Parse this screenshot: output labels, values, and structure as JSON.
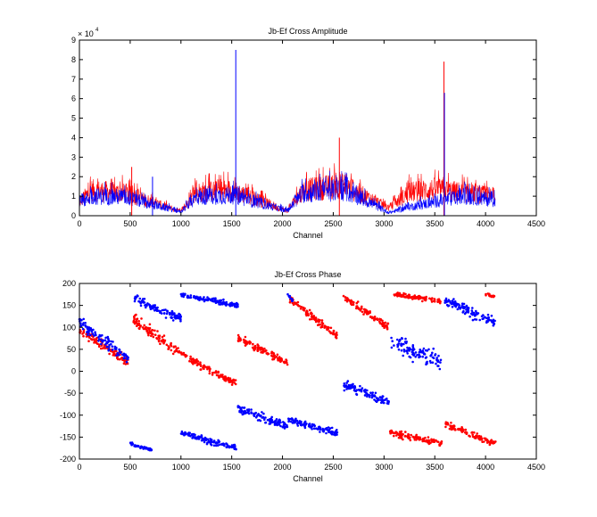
{
  "colors": {
    "red_series": "#ff0000",
    "blue_series": "#0000ff",
    "axes": "#000000",
    "background": "#ffffff"
  },
  "chart_data": [
    {
      "type": "line",
      "title": "Jb-Ef Cross Amplitude",
      "xlabel": "Channel",
      "ylabel": "",
      "y_exponent_label": "× 10",
      "y_exponent": "4",
      "xlim": [
        0,
        4500
      ],
      "ylim": [
        0,
        9
      ],
      "xticks": [
        0,
        500,
        1000,
        1500,
        2000,
        2500,
        3000,
        3500,
        4000,
        4500
      ],
      "yticks": [
        0,
        1,
        2,
        3,
        4,
        5,
        6,
        7,
        8,
        9
      ],
      "grid": false,
      "series_profiles": {
        "red": [
          [
            0,
            0.7
          ],
          [
            120,
            1.3
          ],
          [
            450,
            1.15
          ],
          [
            1000,
            0.2
          ],
          [
            1150,
            1.2
          ],
          [
            1500,
            1.3
          ],
          [
            2050,
            0.25
          ],
          [
            2200,
            1.3
          ],
          [
            2600,
            1.55
          ],
          [
            3050,
            0.4
          ],
          [
            3250,
            1.2
          ],
          [
            3500,
            1.35
          ],
          [
            4090,
            1.0
          ]
        ],
        "blue": [
          [
            0,
            0.6
          ],
          [
            120,
            1.0
          ],
          [
            450,
            0.95
          ],
          [
            1000,
            0.2
          ],
          [
            1150,
            0.95
          ],
          [
            1500,
            1.05
          ],
          [
            2050,
            0.25
          ],
          [
            2200,
            1.15
          ],
          [
            2600,
            1.35
          ],
          [
            3050,
            0.15
          ],
          [
            3250,
            0.45
          ],
          [
            3550,
            0.75
          ],
          [
            3800,
            1.0
          ],
          [
            4090,
            0.8
          ]
        ]
      },
      "spikes": [
        {
          "series": "red",
          "x": 515,
          "y": 2.5
        },
        {
          "series": "blue",
          "x": 720,
          "y": 2.0
        },
        {
          "series": "blue",
          "x": 1540,
          "y": 8.5
        },
        {
          "series": "red",
          "x": 2560,
          "y": 4.0
        },
        {
          "series": "red",
          "x": 3590,
          "y": 7.9
        },
        {
          "series": "blue",
          "x": 3595,
          "y": 6.3
        }
      ],
      "series": [
        {
          "color": "#ff0000",
          "channel_max": 4096
        },
        {
          "color": "#0000ff",
          "channel_max": 4096
        }
      ]
    },
    {
      "type": "scatter",
      "title": "Jb-Ef Cross Phase",
      "xlabel": "Channel",
      "ylabel": "",
      "xlim": [
        0,
        4500
      ],
      "ylim": [
        -200,
        200
      ],
      "xticks": [
        0,
        500,
        1000,
        1500,
        2000,
        2500,
        3000,
        3500,
        4000,
        4500
      ],
      "yticks": [
        -200,
        -150,
        -100,
        -50,
        0,
        50,
        100,
        150,
        200
      ],
      "grid": false,
      "series": [
        {
          "color": "#ff0000",
          "segments": [
            {
              "x": [
                0,
                480
              ],
              "y": [
                95,
                20
              ],
              "spread": 22
            },
            {
              "x": [
                530,
                1000
              ],
              "y": [
                120,
                40
              ],
              "spread": 25
            },
            {
              "x": [
                1000,
                1540
              ],
              "y": [
                40,
                -30
              ],
              "spread": 20
            },
            {
              "x": [
                1560,
                2050
              ],
              "y": [
                75,
                20
              ],
              "spread": 18
            },
            {
              "x": [
                2070,
                2540
              ],
              "y": [
                165,
                80
              ],
              "spread": 18
            },
            {
              "x": [
                2600,
                3050
              ],
              "y": [
                170,
                100
              ],
              "spread": 18
            },
            {
              "x": [
                3060,
                3580
              ],
              "y": [
                -140,
                -165
              ],
              "spread": 15
            },
            {
              "x": [
                3600,
                4100
              ],
              "y": [
                -120,
                -165
              ],
              "spread": 15
            },
            {
              "x": [
                3100,
                3560
              ],
              "y": [
                175,
                160
              ],
              "spread": 10
            },
            {
              "x": [
                4000,
                4090
              ],
              "y": [
                175,
                170
              ],
              "spread": 6
            }
          ]
        },
        {
          "color": "#0000ff",
          "segments": [
            {
              "x": [
                0,
                480
              ],
              "y": [
                110,
                30
              ],
              "spread": 25
            },
            {
              "x": [
                540,
                1000
              ],
              "y": [
                165,
                120
              ],
              "spread": 20
            },
            {
              "x": [
                1000,
                1550
              ],
              "y": [
                -140,
                -175
              ],
              "spread": 15
            },
            {
              "x": [
                1560,
                2050
              ],
              "y": [
                -85,
                -125
              ],
              "spread": 20
            },
            {
              "x": [
                2050,
                2540
              ],
              "y": [
                -110,
                -140
              ],
              "spread": 18
            },
            {
              "x": [
                2600,
                3050
              ],
              "y": [
                -30,
                -70
              ],
              "spread": 20
            },
            {
              "x": [
                3070,
                3560
              ],
              "y": [
                70,
                20
              ],
              "spread": 40
            },
            {
              "x": [
                3600,
                4100
              ],
              "y": [
                160,
                110
              ],
              "spread": 25
            },
            {
              "x": [
                1000,
                1560
              ],
              "y": [
                175,
                150
              ],
              "spread": 12
            },
            {
              "x": [
                500,
                720
              ],
              "y": [
                -165,
                -180
              ],
              "spread": 6
            },
            {
              "x": [
                2050,
                2100
              ],
              "y": [
                175,
                160
              ],
              "spread": 8
            }
          ]
        }
      ]
    }
  ]
}
